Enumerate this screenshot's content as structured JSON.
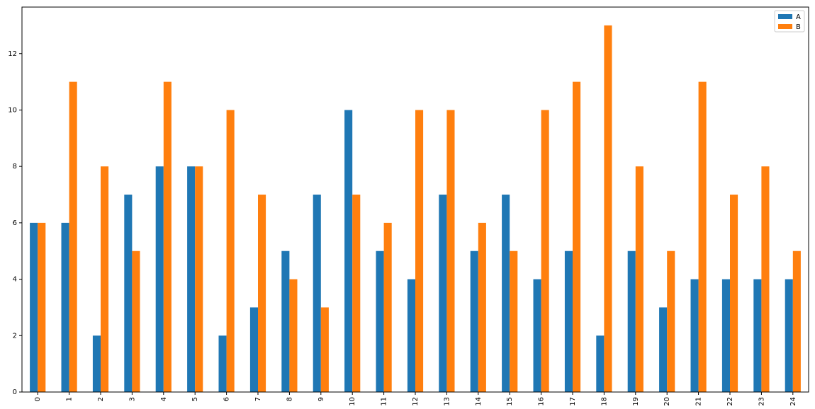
{
  "chart_data": {
    "type": "bar",
    "categories": [
      "0",
      "1",
      "2",
      "3",
      "4",
      "5",
      "6",
      "7",
      "8",
      "9",
      "10",
      "11",
      "12",
      "13",
      "14",
      "15",
      "16",
      "17",
      "18",
      "19",
      "20",
      "21",
      "22",
      "23",
      "24"
    ],
    "series": [
      {
        "name": "A",
        "color": "#1f77b4",
        "values": [
          6,
          6,
          2,
          7,
          8,
          8,
          2,
          3,
          5,
          7,
          10,
          5,
          4,
          7,
          5,
          7,
          4,
          5,
          2,
          5,
          3,
          4,
          4,
          4,
          4
        ]
      },
      {
        "name": "B",
        "color": "#ff7f0e",
        "values": [
          6,
          11,
          8,
          5,
          11,
          8,
          10,
          7,
          4,
          3,
          7,
          6,
          10,
          10,
          6,
          5,
          10,
          11,
          13,
          8,
          5,
          11,
          7,
          8,
          5
        ]
      }
    ],
    "ylim": [
      0,
      13.65
    ],
    "yticks": [
      0,
      2,
      4,
      6,
      8,
      10,
      12
    ],
    "legend": "upper right"
  }
}
